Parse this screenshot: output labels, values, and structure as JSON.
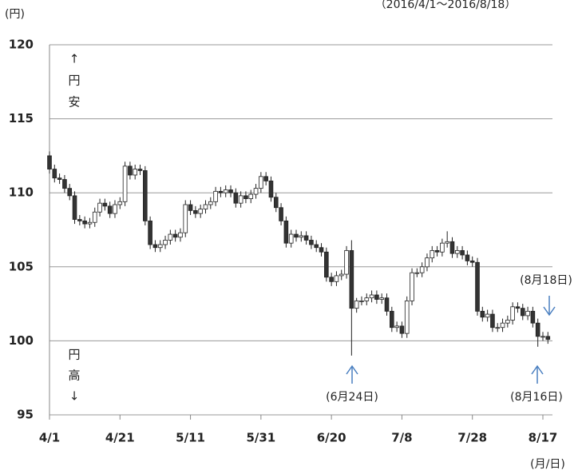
{
  "chart_data": {
    "type": "candlestick",
    "y_unit": "(円)",
    "subtitle": "（2016/4/1～2016/8/18）",
    "x_unit": "(月/日)",
    "annotations_up": [
      "↑",
      "円",
      "安"
    ],
    "annotations_down": [
      "円",
      "高",
      "↓"
    ],
    "events": [
      "(6月24日)",
      "(8月16日)",
      "(8月18日)"
    ],
    "ylim": [
      95,
      120
    ],
    "yticks": [
      95,
      100,
      105,
      110,
      115,
      120
    ],
    "grid": true,
    "up_color": "#ffffff",
    "down_color": "#333333",
    "categories": [
      "4/1",
      null,
      null,
      null,
      null,
      null,
      null,
      null,
      null,
      null,
      null,
      null,
      null,
      null,
      "4/21",
      null,
      null,
      null,
      null,
      null,
      null,
      null,
      null,
      null,
      null,
      null,
      null,
      null,
      "5/11",
      null,
      null,
      null,
      null,
      null,
      null,
      null,
      null,
      null,
      null,
      null,
      null,
      null,
      "5/31",
      null,
      null,
      null,
      null,
      null,
      null,
      null,
      null,
      null,
      null,
      null,
      null,
      null,
      "6/20",
      null,
      null,
      null,
      null,
      null,
      null,
      null,
      null,
      null,
      null,
      null,
      null,
      null,
      "7/8",
      null,
      null,
      null,
      null,
      null,
      null,
      null,
      null,
      null,
      null,
      null,
      null,
      null,
      "7/28",
      null,
      null,
      null,
      null,
      null,
      null,
      null,
      null,
      null,
      null,
      null,
      null,
      null,
      "8/17",
      null
    ],
    "open": [
      112.5,
      111.6,
      111.0,
      110.9,
      110.3,
      109.8,
      108.2,
      108.1,
      107.9,
      108.0,
      108.7,
      109.3,
      109.1,
      108.6,
      109.2,
      109.4,
      111.8,
      111.2,
      111.6,
      111.5,
      108.1,
      106.5,
      106.3,
      106.5,
      106.8,
      107.2,
      107.0,
      107.3,
      109.2,
      108.8,
      108.6,
      108.9,
      109.2,
      109.4,
      110.1,
      110.0,
      110.2,
      110.0,
      109.3,
      109.8,
      109.6,
      109.9,
      110.3,
      111.1,
      110.8,
      109.7,
      109.0,
      108.1,
      106.6,
      107.2,
      107.0,
      107.1,
      106.8,
      106.5,
      106.3,
      106.0,
      104.3,
      104.0,
      104.4,
      104.5,
      106.1,
      102.2,
      102.7,
      102.7,
      102.9,
      103.1,
      102.8,
      102.9,
      102.0,
      100.9,
      101.0,
      100.5,
      102.7,
      104.6,
      104.6,
      105.0,
      105.6,
      106.1,
      106.0,
      106.6,
      106.7,
      105.9,
      106.1,
      105.8,
      105.4,
      105.3,
      102.0,
      101.6,
      101.8,
      100.9,
      100.9,
      101.2,
      101.4,
      102.3,
      102.2,
      101.7,
      102.0,
      101.2,
      100.3,
      100.3
    ],
    "high": [
      112.8,
      111.9,
      111.3,
      111.2,
      110.6,
      110.1,
      108.5,
      108.4,
      108.3,
      109.0,
      109.6,
      109.6,
      109.4,
      109.5,
      109.7,
      112.1,
      112.1,
      111.9,
      111.9,
      111.8,
      108.4,
      106.8,
      106.8,
      107.1,
      107.5,
      107.5,
      107.6,
      109.5,
      109.5,
      109.1,
      109.2,
      109.5,
      109.7,
      110.4,
      110.4,
      110.5,
      110.5,
      110.3,
      110.1,
      110.1,
      110.2,
      110.6,
      111.4,
      111.4,
      111.1,
      110.0,
      109.3,
      108.4,
      107.5,
      107.5,
      107.4,
      107.4,
      107.1,
      106.8,
      106.6,
      106.3,
      104.6,
      104.7,
      104.8,
      106.4,
      106.8,
      102.9,
      103.0,
      103.2,
      103.4,
      103.4,
      103.2,
      103.2,
      102.3,
      101.3,
      101.3,
      103.0,
      104.9,
      104.9,
      105.3,
      105.9,
      106.4,
      106.4,
      106.9,
      107.4,
      107.0,
      106.4,
      106.4,
      106.1,
      105.7,
      105.6,
      102.3,
      102.1,
      102.1,
      101.2,
      101.5,
      101.7,
      102.6,
      102.6,
      102.5,
      102.3,
      102.3,
      101.5,
      100.6,
      100.6
    ],
    "low": [
      111.3,
      110.7,
      110.6,
      110.0,
      109.5,
      107.9,
      107.8,
      107.6,
      107.6,
      107.7,
      108.4,
      108.8,
      108.3,
      108.3,
      108.9,
      109.1,
      110.9,
      110.9,
      111.2,
      107.8,
      106.2,
      106.0,
      106.0,
      106.2,
      106.5,
      106.7,
      106.7,
      107.0,
      108.5,
      108.3,
      108.3,
      108.6,
      108.9,
      109.1,
      109.7,
      109.7,
      109.7,
      109.0,
      109.0,
      109.3,
      109.3,
      109.6,
      110.0,
      110.5,
      109.4,
      108.7,
      107.8,
      106.3,
      106.3,
      106.7,
      106.7,
      106.5,
      106.2,
      106.0,
      105.7,
      104.0,
      103.7,
      103.7,
      104.1,
      104.2,
      99.0,
      101.9,
      102.4,
      102.4,
      102.6,
      102.5,
      102.5,
      101.7,
      100.6,
      100.6,
      100.2,
      100.2,
      102.4,
      104.3,
      104.3,
      104.7,
      105.3,
      105.7,
      105.7,
      106.3,
      105.6,
      105.6,
      105.5,
      105.1,
      105.0,
      101.7,
      101.3,
      101.3,
      100.6,
      100.6,
      100.6,
      100.9,
      101.1,
      101.9,
      101.4,
      101.4,
      100.9,
      99.6,
      100.0,
      99.8
    ],
    "close": [
      111.6,
      111.0,
      110.9,
      110.3,
      109.8,
      108.2,
      108.1,
      107.9,
      108.0,
      108.7,
      109.3,
      109.1,
      108.6,
      109.2,
      109.4,
      111.8,
      111.2,
      111.6,
      111.5,
      108.1,
      106.5,
      106.3,
      106.5,
      106.8,
      107.2,
      107.0,
      107.3,
      109.2,
      108.8,
      108.6,
      108.9,
      109.2,
      109.4,
      110.1,
      110.0,
      110.2,
      110.0,
      109.3,
      109.8,
      109.6,
      109.9,
      110.3,
      111.1,
      110.8,
      109.7,
      109.0,
      108.1,
      106.6,
      107.2,
      107.0,
      107.1,
      106.8,
      106.5,
      106.3,
      106.0,
      104.3,
      104.0,
      104.4,
      104.5,
      106.1,
      102.2,
      102.7,
      102.7,
      102.9,
      103.1,
      102.8,
      102.9,
      102.0,
      100.9,
      101.0,
      100.5,
      102.7,
      104.6,
      104.6,
      105.0,
      105.6,
      106.1,
      106.0,
      106.6,
      106.7,
      105.9,
      106.1,
      105.8,
      105.4,
      105.3,
      102.0,
      101.6,
      101.8,
      100.9,
      100.9,
      101.2,
      101.4,
      102.3,
      102.2,
      101.7,
      102.0,
      101.2,
      100.3,
      100.3,
      100.1
    ]
  }
}
